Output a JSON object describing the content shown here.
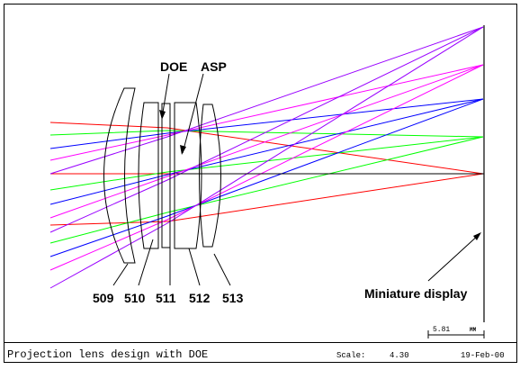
{
  "diagram": {
    "labels": {
      "doe": "DOE",
      "asp": "ASP",
      "lens_509": "509",
      "lens_510": "510",
      "lens_511": "511",
      "lens_512": "512",
      "lens_513": "513",
      "display": "Miniature display"
    },
    "scale_bar": {
      "value": "5.81",
      "unit": "MM"
    },
    "ray_colors": [
      "#ff0000",
      "#00ff00",
      "#0000ff",
      "#ff00ff",
      "#9900ff"
    ]
  },
  "footer": {
    "title": "Projection lens design with DOE",
    "scale_label": "Scale:",
    "scale_value": "4.30",
    "date": "19-Feb-00"
  }
}
